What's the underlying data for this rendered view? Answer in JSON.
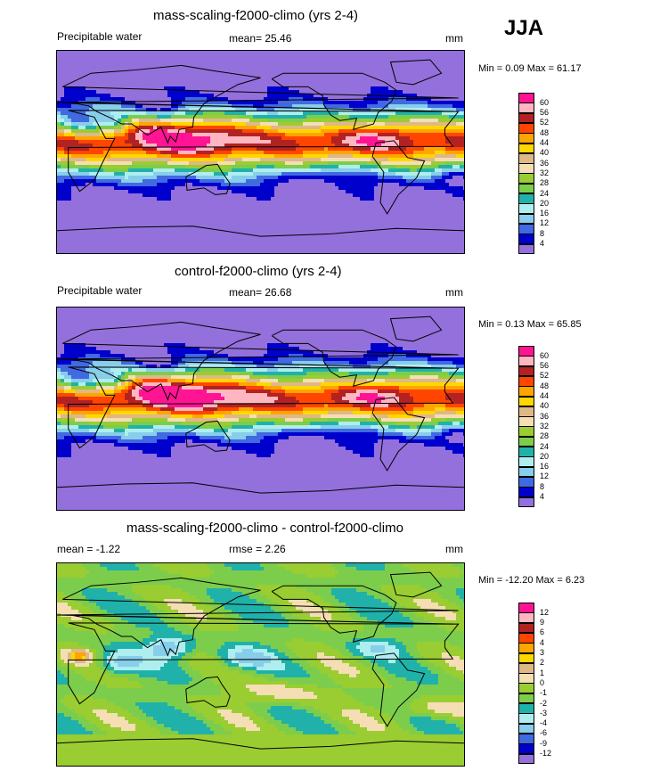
{
  "header": {
    "season": "JJA"
  },
  "panels": [
    {
      "title": "mass-scaling-f2000-climo (yrs 2-4)",
      "left_label": "Precipitable water",
      "center_label": "mean=  25.46",
      "units": "mm",
      "minmax": "Min =   0.09 Max =  61.17",
      "kind": "total",
      "colorbar": {
        "labels": [
          "60",
          "56",
          "52",
          "48",
          "44",
          "40",
          "36",
          "32",
          "28",
          "24",
          "20",
          "16",
          "12",
          "8",
          "4"
        ],
        "colors": [
          "#ff1493",
          "#ffb6c1",
          "#b22222",
          "#ff4500",
          "#ffa500",
          "#ffd700",
          "#deb887",
          "#f5deb3",
          "#9acd32",
          "#7ccd4c",
          "#20b2aa",
          "#afeeee",
          "#87ceeb",
          "#4169e1",
          "#0000cd",
          "#9370db"
        ]
      }
    },
    {
      "title": "control-f2000-climo (yrs 2-4)",
      "left_label": "Precipitable water",
      "center_label": "mean=  26.68",
      "units": "mm",
      "minmax": "Min =   0.13 Max =  65.85",
      "kind": "total",
      "colorbar": {
        "labels": [
          "60",
          "56",
          "52",
          "48",
          "44",
          "40",
          "36",
          "32",
          "28",
          "24",
          "20",
          "16",
          "12",
          "8",
          "4"
        ],
        "colors": [
          "#ff1493",
          "#ffb6c1",
          "#b22222",
          "#ff4500",
          "#ffa500",
          "#ffd700",
          "#deb887",
          "#f5deb3",
          "#9acd32",
          "#7ccd4c",
          "#20b2aa",
          "#afeeee",
          "#87ceeb",
          "#4169e1",
          "#0000cd",
          "#9370db"
        ]
      }
    },
    {
      "title": "mass-scaling-f2000-climo - control-f2000-climo",
      "left_label": "mean =  -1.22",
      "center_label": "rmse =   2.26",
      "units": "mm",
      "minmax": "Min = -12.20 Max =   6.23",
      "kind": "diff",
      "colorbar": {
        "labels": [
          "12",
          "9",
          "6",
          "4",
          "3",
          "2",
          "1",
          "0",
          "-1",
          "-2",
          "-3",
          "-4",
          "-6",
          "-9",
          "-12"
        ],
        "colors": [
          "#ff1493",
          "#ffb6c1",
          "#b22222",
          "#ff4500",
          "#ffa500",
          "#ffd700",
          "#deb887",
          "#f5deb3",
          "#9acd32",
          "#7ccd4c",
          "#20b2aa",
          "#afeeee",
          "#87ceeb",
          "#4169e1",
          "#0000cd",
          "#9370db"
        ]
      }
    }
  ]
}
